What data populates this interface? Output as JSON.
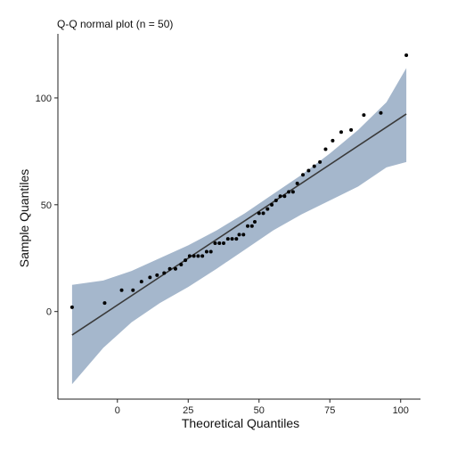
{
  "chart_data": {
    "type": "scatter",
    "subtitle": "Q-Q normal plot (n = 50)",
    "xlabel": "Theoretical Quantiles",
    "ylabel": "Sample Quantiles",
    "xlim": [
      -21,
      107
    ],
    "ylim": [
      -41,
      130
    ],
    "xticks": [
      0,
      25,
      50,
      75,
      100
    ],
    "yticks": [
      0,
      50,
      100
    ],
    "grid": false,
    "points": [
      [
        -16,
        2
      ],
      [
        -4.5,
        4
      ],
      [
        1.5,
        10
      ],
      [
        5.5,
        10
      ],
      [
        8.5,
        14
      ],
      [
        11.5,
        16
      ],
      [
        14,
        17
      ],
      [
        16.5,
        18
      ],
      [
        18.5,
        20
      ],
      [
        20.5,
        20
      ],
      [
        22.5,
        22
      ],
      [
        24,
        24
      ],
      [
        25.5,
        26
      ],
      [
        27,
        26
      ],
      [
        28.5,
        26
      ],
      [
        30,
        26
      ],
      [
        31.5,
        28
      ],
      [
        33,
        28
      ],
      [
        34.5,
        32
      ],
      [
        36,
        32
      ],
      [
        37.5,
        32
      ],
      [
        39,
        34
      ],
      [
        40.5,
        34
      ],
      [
        42,
        34
      ],
      [
        43,
        36
      ],
      [
        44.5,
        36
      ],
      [
        46,
        40
      ],
      [
        47.5,
        40
      ],
      [
        48.5,
        42
      ],
      [
        50,
        46
      ],
      [
        51.5,
        46
      ],
      [
        53,
        48
      ],
      [
        54.5,
        50
      ],
      [
        56,
        52
      ],
      [
        57.5,
        54
      ],
      [
        59,
        54
      ],
      [
        60.5,
        56
      ],
      [
        62,
        56
      ],
      [
        63.5,
        60
      ],
      [
        65.5,
        64
      ],
      [
        67.5,
        66
      ],
      [
        69.5,
        68
      ],
      [
        71.5,
        70
      ],
      [
        73.5,
        76
      ],
      [
        76,
        80
      ],
      [
        79,
        84
      ],
      [
        82.5,
        85
      ],
      [
        87,
        92
      ],
      [
        93,
        93
      ],
      [
        102,
        120
      ]
    ],
    "reference_line": {
      "x": [
        -16,
        102
      ],
      "y": [
        -11,
        92.5
      ]
    },
    "confidence_band": {
      "x": [
        -16,
        -5,
        5,
        15,
        25,
        35,
        45,
        55,
        65,
        75,
        85,
        95,
        102
      ],
      "upper": [
        12.5,
        14.5,
        19,
        25,
        31,
        38,
        46,
        55,
        64,
        74,
        85,
        98,
        114
      ],
      "lower": [
        -34,
        -17,
        -5,
        4,
        11.5,
        20,
        29,
        38,
        45.5,
        52,
        58.5,
        67.5,
        70
      ]
    },
    "colors": {
      "band": "#a5b7cc",
      "line": "#3a3a3a",
      "points": "#000000",
      "axis": "#222222"
    }
  }
}
